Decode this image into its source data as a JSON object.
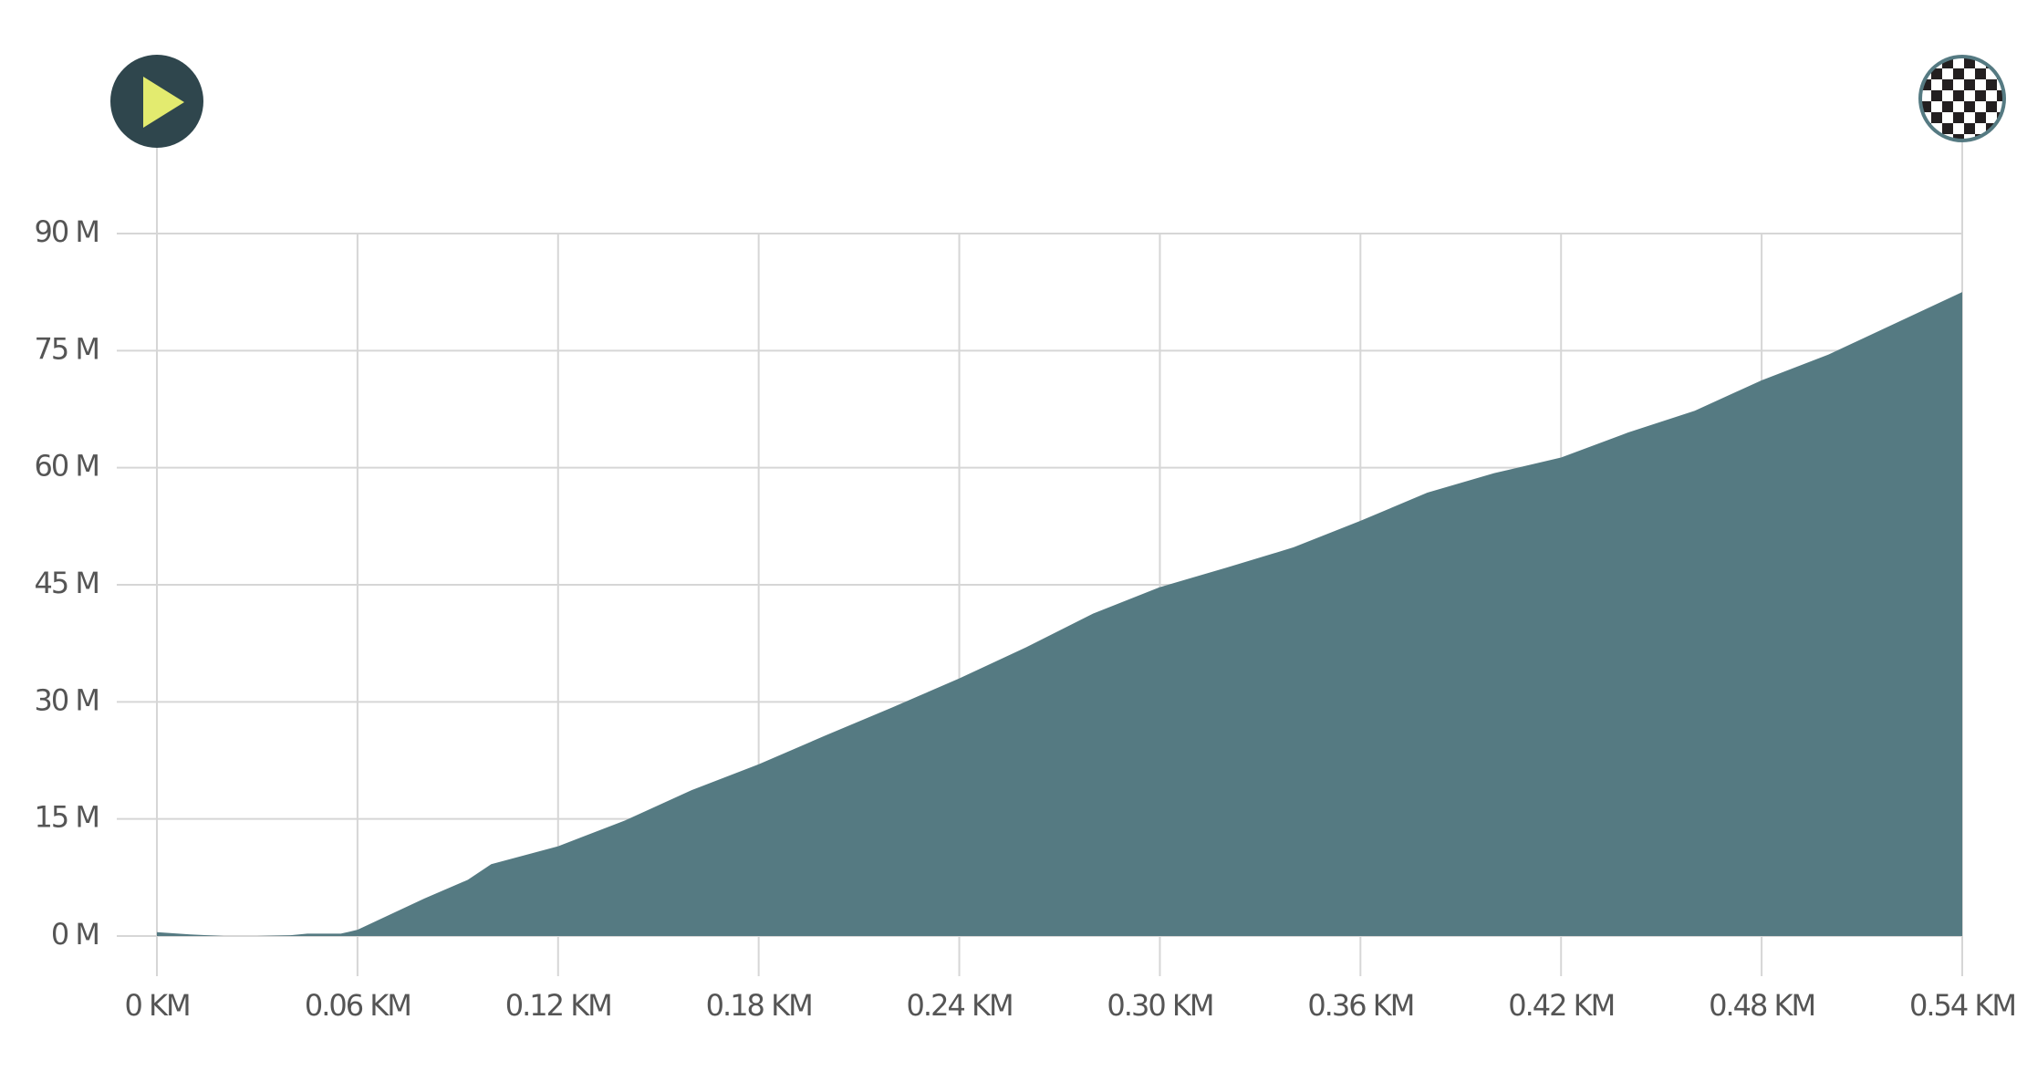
{
  "chart_data": {
    "type": "area",
    "color": "#557a82",
    "grid": true,
    "x": [
      0,
      0.01,
      0.02,
      0.03,
      0.04,
      0.045,
      0.055,
      0.06,
      0.07,
      0.08,
      0.093,
      0.1,
      0.12,
      0.14,
      0.16,
      0.18,
      0.2,
      0.22,
      0.24,
      0.26,
      0.28,
      0.3,
      0.32,
      0.34,
      0.36,
      0.38,
      0.4,
      0.42,
      0.44,
      0.46,
      0.48,
      0.5,
      0.52,
      0.54
    ],
    "values": [
      0.5,
      0.2,
      0,
      0,
      0.1,
      0.3,
      0.3,
      0.8,
      2.8,
      4.8,
      7.2,
      9.2,
      11.5,
      14.8,
      18.7,
      22,
      25.7,
      29.3,
      33,
      37,
      41.3,
      44.7,
      47.2,
      49.8,
      53.2,
      56.8,
      59.3,
      61.3,
      64.5,
      67.3,
      71.2,
      74.5,
      78.5,
      82.5
    ],
    "xlim": [
      0,
      0.54
    ],
    "xticks": [
      {
        "value": 0,
        "label": "0 KM"
      },
      {
        "value": 0.06,
        "label": "0.06 KM"
      },
      {
        "value": 0.12,
        "label": "0.12 KM"
      },
      {
        "value": 0.18,
        "label": "0.18 KM"
      },
      {
        "value": 0.24,
        "label": "0.24 KM"
      },
      {
        "value": 0.3,
        "label": "0.30 KM"
      },
      {
        "value": 0.36,
        "label": "0.36 KM"
      },
      {
        "value": 0.42,
        "label": "0.42 KM"
      },
      {
        "value": 0.48,
        "label": "0.48 KM"
      },
      {
        "value": 0.54,
        "label": "0.54 KM"
      }
    ],
    "ylim": [
      0,
      90
    ],
    "yticks": [
      {
        "value": 0,
        "label": "0 M"
      },
      {
        "value": 15,
        "label": "15 M"
      },
      {
        "value": 30,
        "label": "30 M"
      },
      {
        "value": 45,
        "label": "45 M"
      },
      {
        "value": 60,
        "label": "60 M"
      },
      {
        "value": 75,
        "label": "75 M"
      },
      {
        "value": 90,
        "label": "90 M"
      }
    ]
  }
}
